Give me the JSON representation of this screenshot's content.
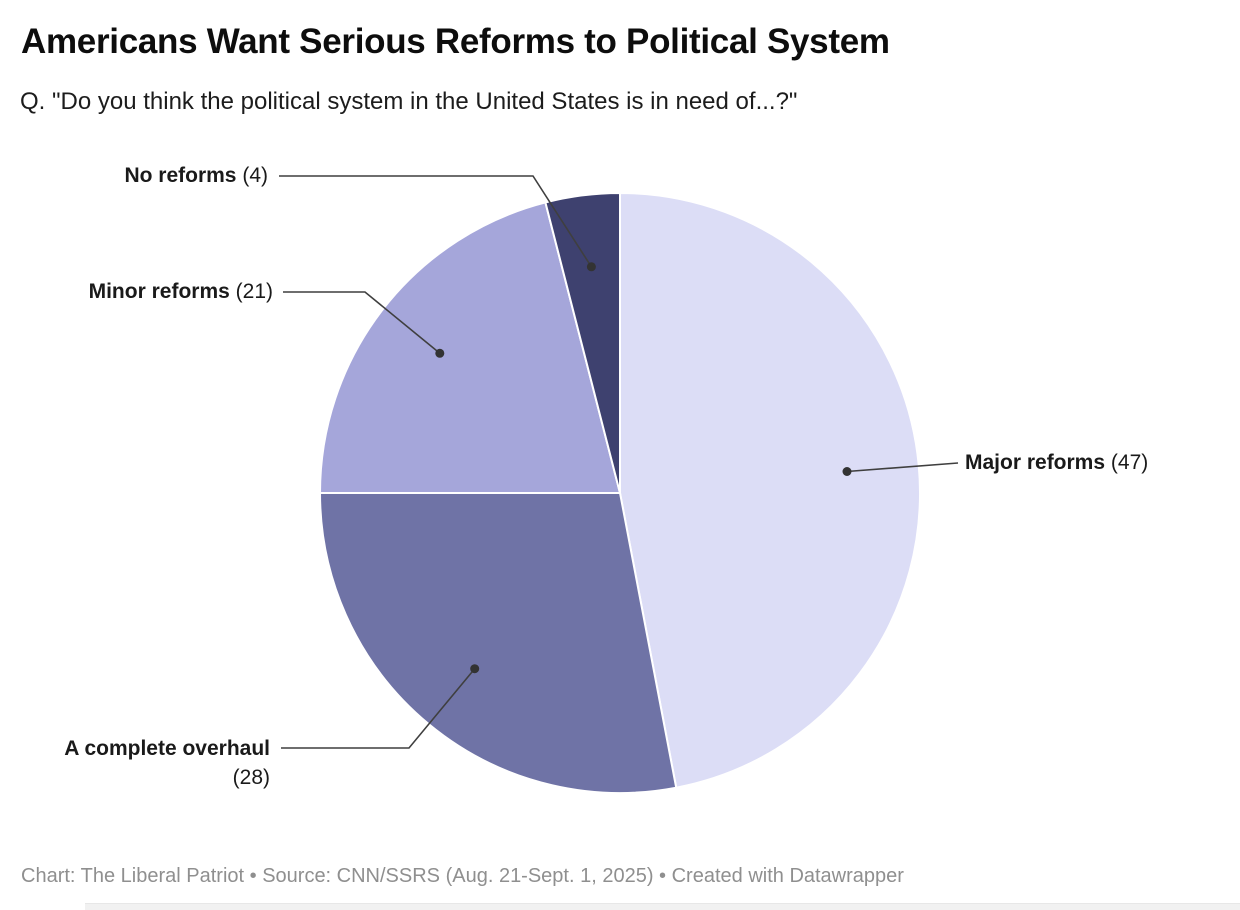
{
  "header": {
    "title": "Americans Want Serious Reforms to Political System",
    "subtitle": "Q. \"Do you think the political system in the United States is in need of...?\""
  },
  "chart_data": {
    "type": "pie",
    "title": "Americans Want Serious Reforms to Political System",
    "question": "Do you think the political system in the United States is in need of...?",
    "unit": "percent",
    "total": 100,
    "start_angle_deg": 0,
    "direction": "clockwise",
    "legend_position": "outside-leader-labels",
    "slice_border_color": "#ffffff",
    "leader_line_color": "#3f3f3f",
    "leader_dot_color": "#333333",
    "slices": [
      {
        "label": "Major reforms",
        "value": 47,
        "value_display": "(47)",
        "color": "#dcddf6"
      },
      {
        "label": "A complete overhaul",
        "value": 28,
        "value_display": "(28)",
        "color": "#6f73a6"
      },
      {
        "label": "Minor reforms",
        "value": 21,
        "value_display": "(21)",
        "color": "#a5a6da"
      },
      {
        "label": "No reforms",
        "value": 4,
        "value_display": "(4)",
        "color": "#3e416f"
      }
    ]
  },
  "footer": {
    "text": "Chart: The Liberal Patriot • Source: CNN/SSRS (Aug. 21-Sept. 1, 2025) • Created with Datawrapper"
  }
}
